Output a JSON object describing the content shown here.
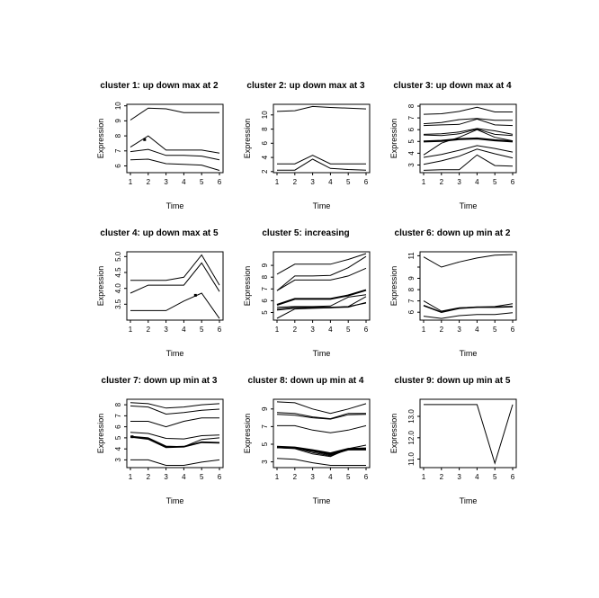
{
  "figure": {
    "background": "#ffffff",
    "line_color": "#000000",
    "text_color": "#000000"
  },
  "chart_data": [
    {
      "type": "line",
      "title": "cluster 1: up down max at 2",
      "xlabel": "Time",
      "ylabel": "Expression",
      "x": [
        1,
        2,
        3,
        4,
        5,
        6
      ],
      "xlim": [
        0.8,
        6.2
      ],
      "ylim": [
        5.55,
        10.1
      ],
      "yticks": [
        6,
        7,
        8,
        9,
        10
      ],
      "ytick_labels": [
        "6",
        "7",
        "8",
        "9",
        "10"
      ],
      "grid": false,
      "legend": "none",
      "series": [
        {
          "values": [
            9.05,
            9.85,
            9.8,
            9.55,
            9.55,
            9.55
          ]
        },
        {
          "values": [
            7.25,
            8.0,
            7.05,
            7.05,
            7.05,
            6.85
          ]
        },
        {
          "values": [
            6.95,
            7.1,
            6.7,
            6.7,
            6.65,
            6.4
          ]
        },
        {
          "values": [
            6.4,
            6.45,
            6.15,
            6.1,
            6.05,
            5.7
          ]
        }
      ],
      "dots": [
        [
          1.8,
          7.75
        ]
      ]
    },
    {
      "type": "line",
      "title": "cluster 2: up down max at 3",
      "xlabel": "Time",
      "ylabel": "Expression",
      "x": [
        1,
        2,
        3,
        4,
        5,
        6
      ],
      "xlim": [
        0.8,
        6.2
      ],
      "ylim": [
        1.85,
        11.5
      ],
      "yticks": [
        2,
        4,
        6,
        8,
        10
      ],
      "ytick_labels": [
        "2",
        "4",
        "6",
        "8",
        "10"
      ],
      "grid": false,
      "legend": "none",
      "series": [
        {
          "values": [
            10.5,
            10.6,
            11.2,
            11.05,
            10.95,
            10.85
          ]
        },
        {
          "values": [
            3.1,
            3.1,
            4.3,
            3.1,
            3.1,
            3.1
          ]
        },
        {
          "values": [
            2.2,
            2.2,
            3.75,
            2.45,
            2.3,
            2.2
          ]
        }
      ],
      "dots": []
    },
    {
      "type": "line",
      "title": "cluster 3: up down max at 4",
      "xlabel": "Time",
      "ylabel": "Expression",
      "x": [
        1,
        2,
        3,
        4,
        5,
        6
      ],
      "xlim": [
        0.8,
        6.2
      ],
      "ylim": [
        2.35,
        8.15
      ],
      "yticks": [
        3,
        4,
        5,
        6,
        7,
        8
      ],
      "ytick_labels": [
        "3",
        "4",
        "5",
        "6",
        "7",
        "8"
      ],
      "grid": false,
      "legend": "none",
      "series": [
        {
          "values": [
            7.3,
            7.35,
            7.55,
            7.9,
            7.5,
            7.5
          ]
        },
        {
          "values": [
            6.5,
            6.6,
            6.85,
            6.95,
            6.8,
            6.8
          ]
        },
        {
          "values": [
            6.35,
            6.4,
            6.45,
            6.9,
            6.4,
            6.35
          ]
        },
        {
          "values": [
            5.6,
            5.65,
            5.8,
            6.1,
            5.9,
            5.6
          ]
        },
        {
          "values": [
            5.55,
            5.5,
            5.65,
            6.05,
            5.6,
            5.5
          ]
        },
        {
          "values": [
            5.0,
            5.05,
            5.2,
            5.25,
            5.1,
            5.0
          ],
          "lw": 2.2
        },
        {
          "values": [
            3.85,
            4.85,
            5.35,
            6.0,
            5.35,
            5.05
          ]
        },
        {
          "values": [
            3.65,
            3.9,
            4.25,
            4.65,
            4.4,
            4.1
          ]
        },
        {
          "values": [
            3.05,
            3.35,
            3.75,
            4.35,
            3.95,
            3.6
          ]
        },
        {
          "values": [
            2.55,
            2.6,
            2.6,
            3.85,
            2.95,
            2.9
          ]
        }
      ],
      "dots": []
    },
    {
      "type": "line",
      "title": "cluster 4: up down max at 5",
      "xlabel": "Time",
      "ylabel": "Expression",
      "x": [
        1,
        2,
        3,
        4,
        5,
        6
      ],
      "xlim": [
        0.8,
        6.2
      ],
      "ylim": [
        3.0,
        5.15
      ],
      "yticks": [
        3.5,
        4.0,
        4.5,
        5.0
      ],
      "ytick_labels": [
        "3.5",
        "4.0",
        "4.5",
        "5.0"
      ],
      "grid": false,
      "legend": "none",
      "series": [
        {
          "values": [
            4.25,
            4.25,
            4.25,
            4.35,
            5.05,
            4.1
          ]
        },
        {
          "values": [
            3.85,
            4.1,
            4.1,
            4.1,
            4.8,
            3.9
          ]
        },
        {
          "values": [
            3.3,
            3.3,
            3.3,
            3.6,
            3.85,
            3.05
          ]
        }
      ],
      "dots": [
        [
          4.65,
          3.78
        ]
      ]
    },
    {
      "type": "line",
      "title": "cluster 5: increasing",
      "xlabel": "Time",
      "ylabel": "Expression",
      "x": [
        1,
        2,
        3,
        4,
        5,
        6
      ],
      "xlim": [
        0.8,
        6.2
      ],
      "ylim": [
        4.35,
        10.15
      ],
      "yticks": [
        5,
        6,
        7,
        8,
        9
      ],
      "ytick_labels": [
        "5",
        "6",
        "7",
        "8",
        "9"
      ],
      "grid": false,
      "legend": "none",
      "series": [
        {
          "values": [
            8.25,
            9.1,
            9.1,
            9.1,
            9.5,
            10.0
          ]
        },
        {
          "values": [
            6.85,
            8.1,
            8.1,
            8.15,
            8.8,
            9.75
          ]
        },
        {
          "values": [
            6.85,
            7.75,
            7.75,
            7.75,
            8.1,
            8.75
          ]
        },
        {
          "values": [
            5.65,
            6.15,
            6.15,
            6.15,
            6.45,
            6.9
          ],
          "lw": 2
        },
        {
          "values": [
            5.45,
            5.5,
            5.5,
            5.55,
            6.3,
            6.5
          ]
        },
        {
          "values": [
            5.3,
            5.45,
            5.45,
            5.45,
            5.5,
            6.35
          ]
        },
        {
          "values": [
            5.2,
            5.35,
            5.4,
            5.4,
            5.45,
            5.85
          ]
        },
        {
          "values": [
            4.5,
            5.3,
            5.35,
            5.4,
            5.5,
            5.8
          ]
        }
      ],
      "dots": []
    },
    {
      "type": "line",
      "title": "cluster 6: down up min at 2",
      "xlabel": "Time",
      "ylabel": "Expression",
      "x": [
        1,
        2,
        3,
        4,
        5,
        6
      ],
      "xlim": [
        0.8,
        6.2
      ],
      "ylim": [
        5.3,
        11.35
      ],
      "yticks": [
        6,
        7,
        8,
        9,
        10,
        11
      ],
      "ytick_labels": [
        "6",
        "7",
        "8",
        "9",
        "",
        "11"
      ],
      "grid": false,
      "legend": "none",
      "series": [
        {
          "values": [
            10.9,
            10.0,
            10.45,
            10.8,
            11.05,
            11.1
          ]
        },
        {
          "values": [
            7.0,
            6.1,
            6.4,
            6.45,
            6.5,
            6.75
          ]
        },
        {
          "values": [
            6.6,
            6.0,
            6.35,
            6.45,
            6.45,
            6.5
          ],
          "lw": 1.6
        },
        {
          "values": [
            5.65,
            5.45,
            5.7,
            5.8,
            5.8,
            5.95
          ]
        }
      ],
      "dots": []
    },
    {
      "type": "line",
      "title": "cluster 7: down up min at 3",
      "xlabel": "Time",
      "ylabel": "Expression",
      "x": [
        1,
        2,
        3,
        4,
        5,
        6
      ],
      "xlim": [
        0.8,
        6.2
      ],
      "ylim": [
        2.3,
        8.5
      ],
      "yticks": [
        3,
        4,
        5,
        6,
        7,
        8
      ],
      "ytick_labels": [
        "3",
        "4",
        "5",
        "6",
        "7",
        "8"
      ],
      "grid": false,
      "legend": "none",
      "series": [
        {
          "values": [
            8.2,
            8.1,
            7.7,
            7.8,
            8.0,
            8.1
          ]
        },
        {
          "values": [
            7.9,
            7.8,
            7.15,
            7.3,
            7.5,
            7.6
          ]
        },
        {
          "values": [
            6.5,
            6.5,
            6.0,
            6.5,
            6.8,
            6.8
          ]
        },
        {
          "values": [
            5.5,
            5.4,
            4.95,
            4.9,
            5.2,
            5.25
          ]
        },
        {
          "values": [
            5.15,
            5.0,
            4.25,
            4.2,
            4.85,
            5.0
          ]
        },
        {
          "values": [
            5.1,
            4.9,
            4.15,
            4.2,
            4.6,
            4.55
          ],
          "lw": 1.8
        },
        {
          "values": [
            3.0,
            3.0,
            2.5,
            2.5,
            2.8,
            3.0
          ]
        }
      ],
      "dots": [
        [
          1.1,
          5.1
        ]
      ]
    },
    {
      "type": "line",
      "title": "cluster 8: down up min at 4",
      "xlabel": "Time",
      "ylabel": "Expression",
      "x": [
        1,
        2,
        3,
        4,
        5,
        6
      ],
      "xlim": [
        0.8,
        6.2
      ],
      "ylim": [
        2.35,
        10.1
      ],
      "yticks": [
        3,
        5,
        7,
        9
      ],
      "ytick_labels": [
        "3",
        "5",
        "7",
        "9"
      ],
      "grid": false,
      "legend": "none",
      "series": [
        {
          "values": [
            9.8,
            9.7,
            9.0,
            8.5,
            9.0,
            9.6
          ]
        },
        {
          "values": [
            8.6,
            8.5,
            8.1,
            7.9,
            8.5,
            8.5
          ]
        },
        {
          "values": [
            8.4,
            8.3,
            8.0,
            7.85,
            8.35,
            8.4
          ]
        },
        {
          "values": [
            7.1,
            7.1,
            6.6,
            6.3,
            6.6,
            7.1
          ]
        },
        {
          "values": [
            4.7,
            4.6,
            4.3,
            3.95,
            4.45,
            4.5
          ],
          "lw": 2.5
        },
        {
          "values": [
            4.65,
            4.6,
            4.05,
            3.7,
            4.4,
            4.45
          ]
        },
        {
          "values": [
            4.6,
            4.5,
            3.9,
            3.6,
            4.5,
            4.9
          ]
        },
        {
          "values": [
            4.6,
            4.55,
            4.2,
            3.8,
            4.35,
            4.35
          ]
        },
        {
          "values": [
            3.4,
            3.3,
            2.9,
            2.6,
            2.6,
            2.6
          ]
        }
      ],
      "dots": []
    },
    {
      "type": "line",
      "title": "cluster 9: down up min at 5",
      "xlabel": "Time",
      "ylabel": "Expression",
      "x": [
        1,
        2,
        3,
        4,
        5,
        6
      ],
      "xlim": [
        0.8,
        6.2
      ],
      "ylim": [
        10.6,
        13.8
      ],
      "yticks": [
        11,
        12,
        13
      ],
      "ytick_labels": [
        "11.0",
        "12.0",
        "13.0"
      ],
      "grid": false,
      "legend": "none",
      "series": [
        {
          "values": [
            13.55,
            13.55,
            13.55,
            13.55,
            10.8,
            13.55
          ]
        }
      ],
      "dots": []
    }
  ]
}
